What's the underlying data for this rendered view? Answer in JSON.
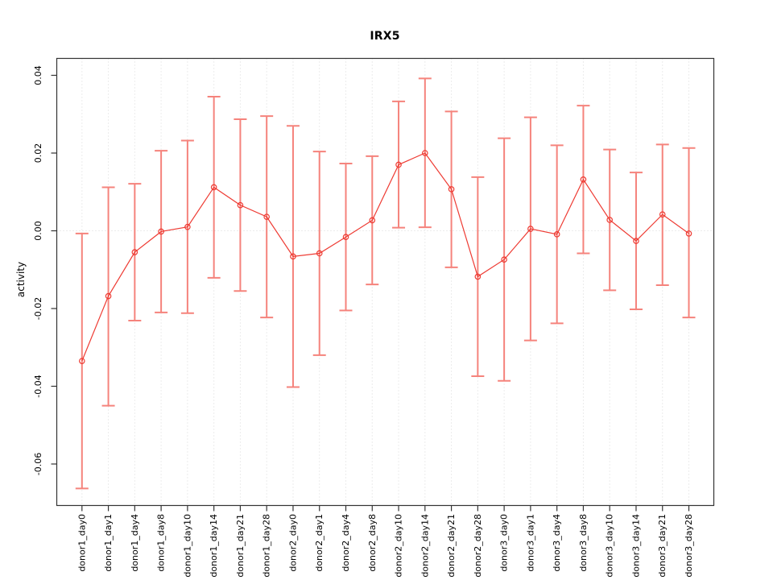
{
  "chart_data": {
    "type": "scatter",
    "subtype": "points-with-error-bars-and-line",
    "title": "IRX5",
    "xlabel": "",
    "ylabel": "activity",
    "ylim": [
      -0.068,
      0.044
    ],
    "ytick_values": [
      0.04,
      0.02,
      0.0,
      -0.02,
      -0.04,
      -0.06
    ],
    "ytick_labels": [
      "0.04",
      "0.02",
      "0.00",
      "-0.02",
      "-0.04",
      "-0.06"
    ],
    "grid": "vertical-dotted-at-each-category-plus-zero-line",
    "legend": "none",
    "categories": [
      "donor1_day0",
      "donor1_day1",
      "donor1_day4",
      "donor1_day8",
      "donor1_day10",
      "donor1_day14",
      "donor1_day21",
      "donor1_day28",
      "donor2_day0",
      "donor2_day1",
      "donor2_day4",
      "donor2_day8",
      "donor2_day10",
      "donor2_day14",
      "donor2_day21",
      "donor2_day28",
      "donor3_day0",
      "donor3_day1",
      "donor3_day4",
      "donor3_day8",
      "donor3_day10",
      "donor3_day14",
      "donor3_day21",
      "donor3_day28"
    ],
    "series": [
      {
        "name": "activity",
        "values": [
          -0.0335,
          -0.0168,
          -0.0055,
          -0.0002,
          0.001,
          0.0112,
          0.0066,
          0.0036,
          -0.0066,
          -0.0058,
          -0.0016,
          0.0027,
          0.017,
          0.02,
          0.0107,
          -0.0118,
          -0.0074,
          0.0005,
          -0.0009,
          0.0132,
          0.0028,
          -0.0026,
          0.0042,
          -0.0007
        ],
        "upper": [
          -0.0007,
          0.0112,
          0.0121,
          0.0206,
          0.0232,
          0.0345,
          0.0287,
          0.0295,
          0.027,
          0.0204,
          0.0173,
          0.0192,
          0.0333,
          0.0392,
          0.0307,
          0.0138,
          0.0238,
          0.0292,
          0.022,
          0.0322,
          0.0209,
          0.015,
          0.0222,
          0.0213
        ],
        "lower": [
          -0.0663,
          -0.045,
          -0.0231,
          -0.021,
          -0.0212,
          -0.0121,
          -0.0155,
          -0.0223,
          -0.0402,
          -0.032,
          -0.0205,
          -0.0138,
          0.0008,
          0.0009,
          -0.0094,
          -0.0374,
          -0.0386,
          -0.0282,
          -0.0238,
          -0.0058,
          -0.0153,
          -0.0202,
          -0.014,
          -0.0223
        ]
      }
    ],
    "colors": {
      "point_line": "#ee3b33",
      "error_bar": "#f5837c",
      "grid": "#d9d9d9",
      "axis": "#333333",
      "text": "#000000"
    }
  }
}
